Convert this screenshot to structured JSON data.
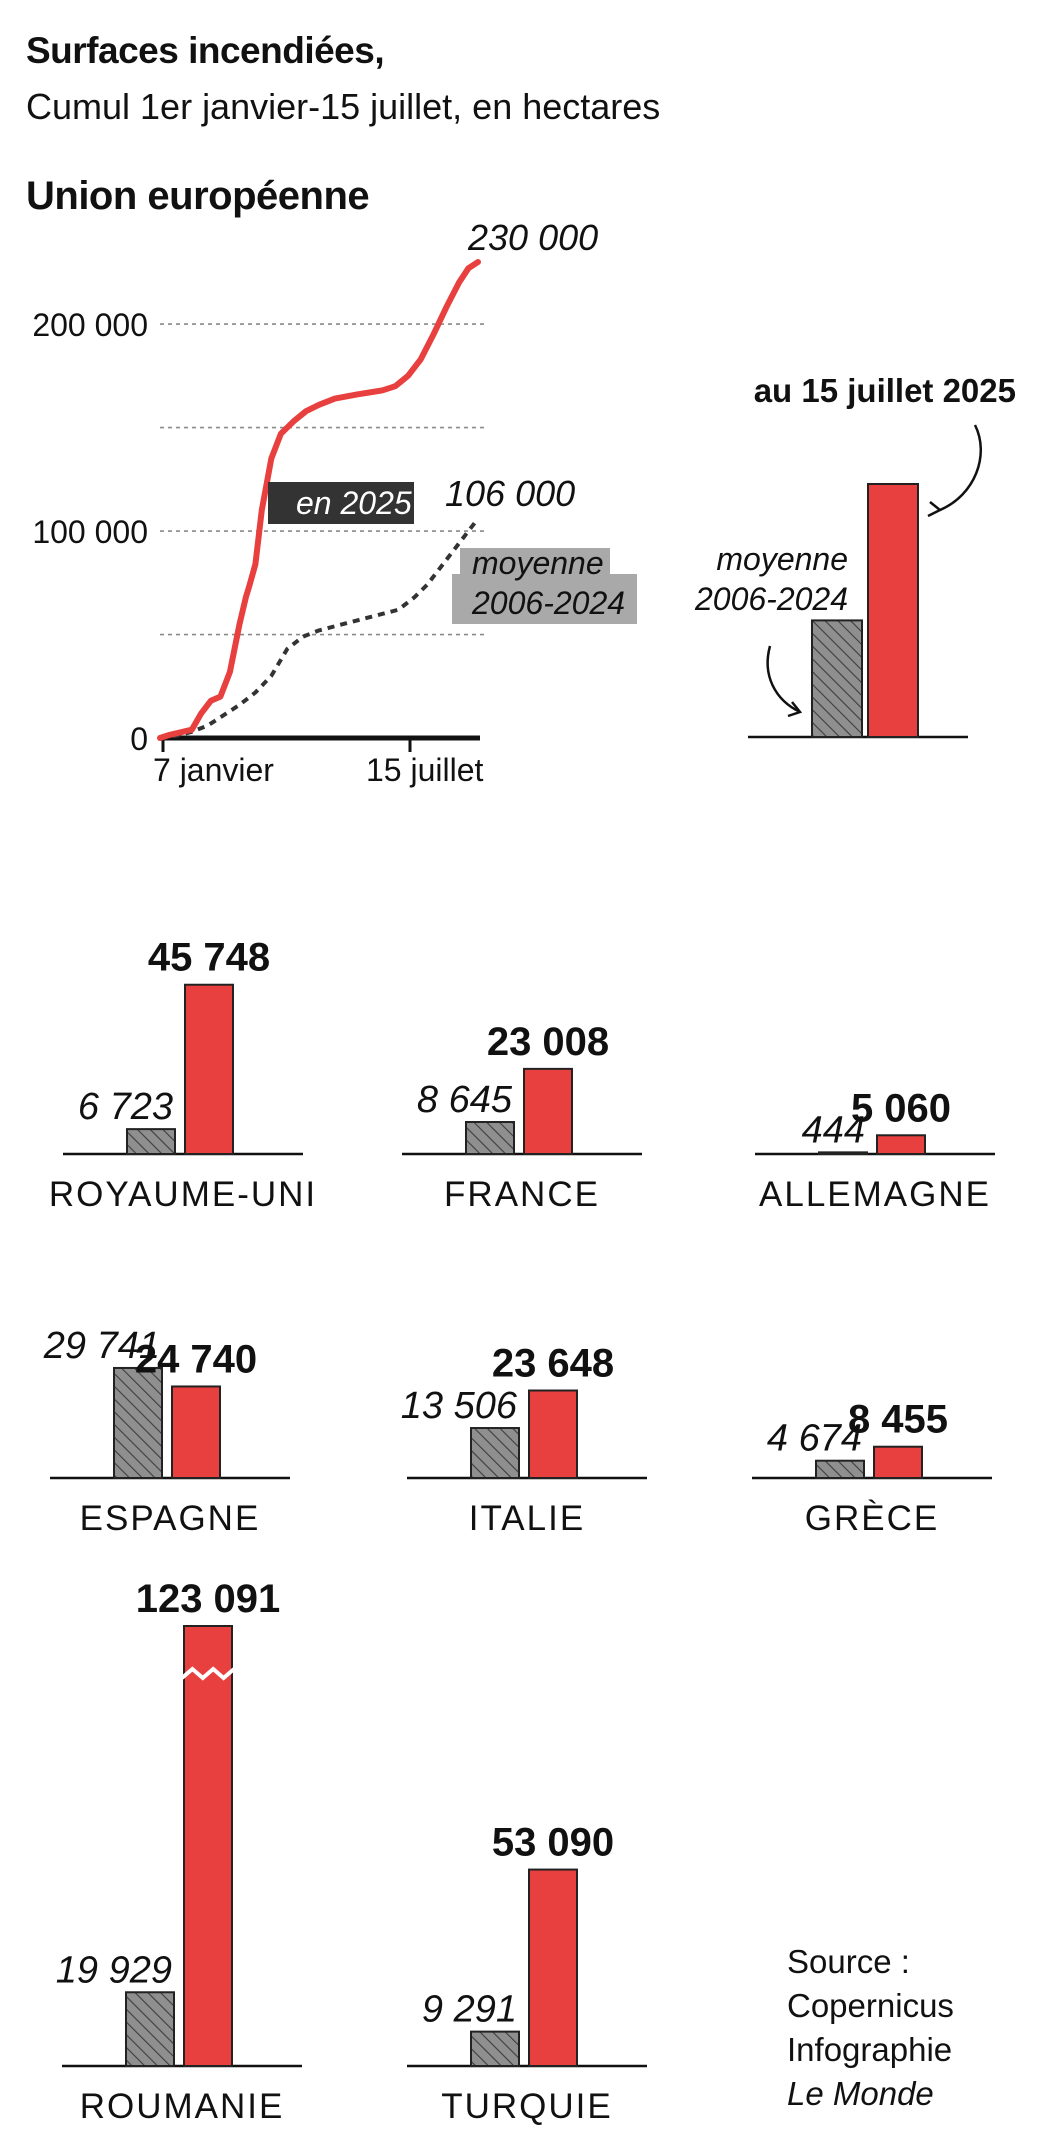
{
  "title": "Surfaces incendiées,",
  "subtitle": "Cumul 1er janvier-15 juillet, en hectares",
  "section_title": "Union européenne",
  "source": {
    "line1": "Source :",
    "line2": "Copernicus",
    "line3": "Infographie",
    "line4": "Le Monde"
  },
  "colors": {
    "red": "#e8403e",
    "hatch_fill": "#8f8f8f",
    "hatch_line": "#3d3d3d",
    "label_dark": "#333333",
    "label_gray": "#a9a9a9",
    "grid": "#8a8a8a"
  },
  "chart_data": [
    {
      "type": "line",
      "x_start_label": "7 janvier",
      "x_end_label": "15 juillet",
      "y_ticks": [
        0,
        100000,
        200000
      ],
      "y_tick_labels": [
        "0",
        "100 000",
        "200 000"
      ],
      "ylim": [
        0,
        230000
      ],
      "grid": "dashed, every 50 000",
      "series": [
        {
          "name": "en 2025",
          "style": "solid red",
          "x": [
            0,
            0.03,
            0.1,
            0.13,
            0.16,
            0.19,
            0.22,
            0.25,
            0.27,
            0.28,
            0.3,
            0.32,
            0.35,
            0.38,
            0.42,
            0.46,
            0.5,
            0.55,
            0.62,
            0.7,
            0.74,
            0.78,
            0.82,
            0.86,
            0.9,
            0.94,
            0.97,
            1.0
          ],
          "y": [
            0,
            1500,
            4000,
            12000,
            18000,
            20000,
            32000,
            55000,
            68000,
            73000,
            84000,
            110000,
            135000,
            147000,
            153000,
            158000,
            161000,
            164000,
            166000,
            168000,
            170000,
            175000,
            183000,
            195000,
            208000,
            220000,
            227000,
            230000
          ],
          "end_label": "230 000"
        },
        {
          "name": "moyenne 2006-2024",
          "style": "dashed dark",
          "x": [
            0,
            0.05,
            0.1,
            0.15,
            0.2,
            0.25,
            0.3,
            0.35,
            0.4,
            0.45,
            0.5,
            0.55,
            0.6,
            0.65,
            0.7,
            0.75,
            0.8,
            0.84,
            0.88,
            0.92,
            0.96,
            1.0
          ],
          "y": [
            0,
            1000,
            3000,
            6000,
            11000,
            16000,
            22000,
            30000,
            43000,
            49000,
            52000,
            54000,
            56000,
            58000,
            60000,
            62000,
            68000,
            74000,
            82000,
            90000,
            98000,
            106000
          ],
          "end_label": "106 000"
        }
      ],
      "labels": {
        "series_2025": "en 2025",
        "avg_line1": "moyenne",
        "avg_line2": "2006-2024"
      }
    },
    {
      "type": "bar",
      "title": "au 15 juillet 2025",
      "categories": [
        "moyenne 2006-2024",
        "2025"
      ],
      "values": [
        106000,
        230000
      ],
      "labels": {
        "avg_line1": "moyenne",
        "avg_line2": "2006-2024"
      }
    },
    {
      "type": "bar",
      "series": [
        {
          "name": "moyenne 2006-2024",
          "values": [
            6723,
            8645,
            444,
            29741,
            13506,
            4674,
            19929,
            9291
          ],
          "labels": [
            "6 723",
            "8 645",
            "444",
            "29 741",
            "13 506",
            "4 674",
            "19 929",
            "9 291"
          ]
        },
        {
          "name": "2025",
          "values": [
            45748,
            23008,
            5060,
            24740,
            23648,
            8455,
            123091,
            53090
          ],
          "labels": [
            "45 748",
            "23 008",
            "5 060",
            "24 740",
            "23 648",
            "8 455",
            "123 091",
            "53 090"
          ]
        }
      ],
      "categories": [
        "ROYAUME-UNI",
        "FRANCE",
        "ALLEMAGNE",
        "ESPAGNE",
        "ITALIE",
        "GRÈCE",
        "ROUMANIE",
        "TURQUIE"
      ],
      "broken_axis": "ROUMANIE"
    }
  ]
}
